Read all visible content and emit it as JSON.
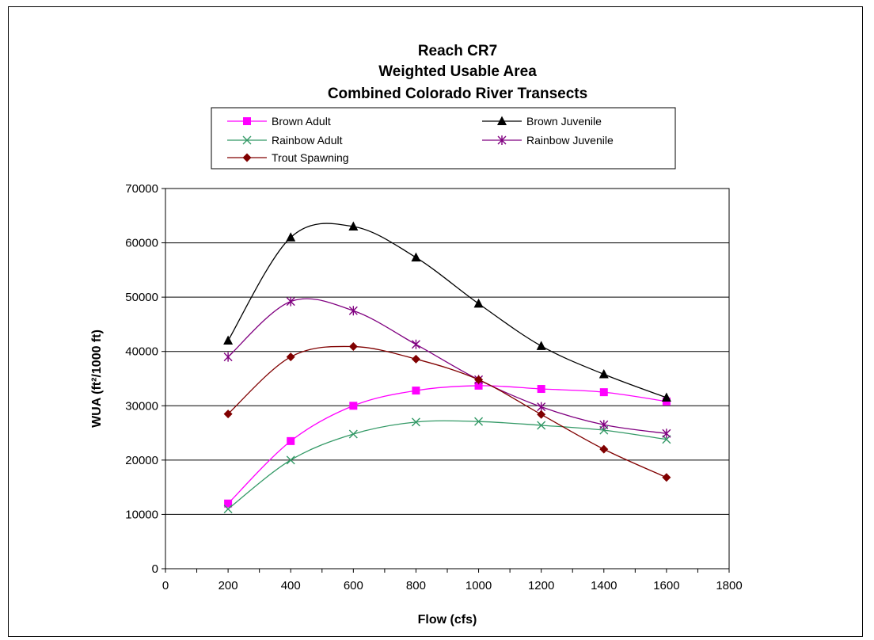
{
  "chart_data": {
    "type": "line",
    "title": [
      "Reach CR7",
      "Weighted Usable Area",
      "Combined Colorado River Transects"
    ],
    "xlabel": "Flow (cfs)",
    "ylabel": "WUA (ft²/1000 ft)",
    "xlim": [
      0,
      1800
    ],
    "ylim": [
      0,
      70000
    ],
    "x_ticks": [
      "0",
      "200",
      "400",
      "600",
      "800",
      "1000",
      "1200",
      "1400",
      "1600",
      "1800"
    ],
    "y_ticks": [
      "0",
      "10000",
      "20000",
      "30000",
      "40000",
      "50000",
      "60000",
      "70000"
    ],
    "grid": "horizontal",
    "smooth": true,
    "legend_position": "top",
    "x": [
      200,
      400,
      600,
      800,
      1000,
      1200,
      1400,
      1600
    ],
    "series": [
      {
        "name": "Brown Adult",
        "color": "#ff00ff",
        "marker": "square",
        "values": [
          12000,
          23500,
          30000,
          32800,
          33700,
          33100,
          32500,
          30800
        ]
      },
      {
        "name": "Brown Juvenile",
        "color": "#000000",
        "marker": "triangle",
        "values": [
          42000,
          61000,
          63000,
          57300,
          48800,
          41000,
          35800,
          31500
        ]
      },
      {
        "name": "Rainbow Adult",
        "color": "#339966",
        "marker": "x",
        "values": [
          11000,
          20000,
          24800,
          27000,
          27100,
          26400,
          25500,
          23800
        ]
      },
      {
        "name": "Rainbow Juvenile",
        "color": "#800080",
        "marker": "star",
        "values": [
          39000,
          49200,
          47500,
          41300,
          34800,
          29800,
          26500,
          24900
        ]
      },
      {
        "name": "Trout Spawning",
        "color": "#800000",
        "marker": "diamond",
        "values": [
          28500,
          39000,
          40900,
          38600,
          34800,
          28400,
          22000,
          16800
        ]
      }
    ]
  }
}
